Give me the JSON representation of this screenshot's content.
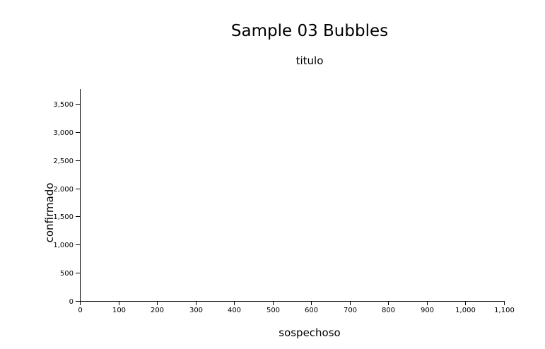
{
  "chart_data": {
    "type": "scatter",
    "title": "Sample 03 Bubbles",
    "subtitle": "titulo",
    "xlabel": "sospechoso",
    "ylabel": "confirmado",
    "xlim": [
      0,
      1100
    ],
    "ylim": [
      0,
      3750
    ],
    "x_ticks": [
      0,
      100,
      200,
      300,
      400,
      500,
      600,
      700,
      800,
      900,
      1000,
      1100
    ],
    "x_tick_labels": [
      "0",
      "100",
      "200",
      "300",
      "400",
      "500",
      "600",
      "700",
      "800",
      "900",
      "1,000",
      "1,100"
    ],
    "y_ticks": [
      0,
      500,
      1000,
      1500,
      2000,
      2500,
      3000,
      3500
    ],
    "y_tick_labels": [
      "0",
      "500",
      "1,000",
      "1,500",
      "2,000",
      "2,500",
      "3,000",
      "3,500"
    ],
    "series": [],
    "grid": false,
    "legend": "none"
  }
}
